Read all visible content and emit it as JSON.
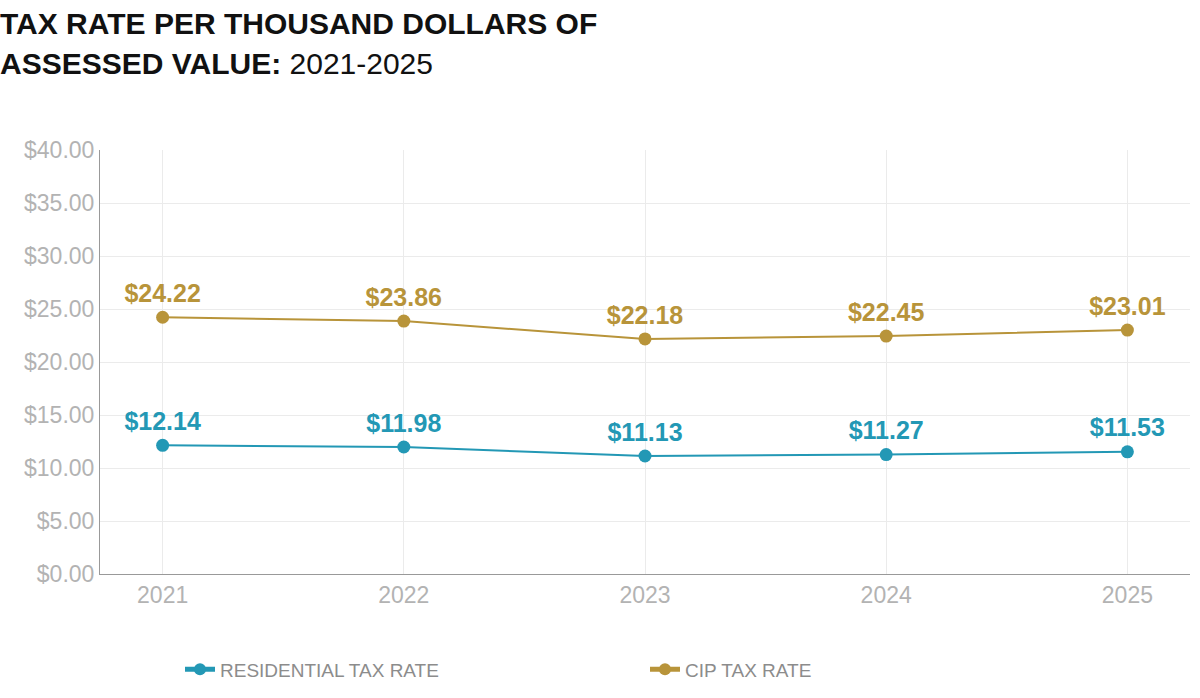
{
  "chart_data": {
    "type": "line",
    "title": "TAX RATE PER THOUSAND DOLLARS OF ASSESSED VALUE: 2021-2025",
    "categories": [
      "2021",
      "2022",
      "2023",
      "2024",
      "2025"
    ],
    "series": [
      {
        "name": "RESIDENTIAL TAX RATE",
        "color": "#2398b5",
        "values": [
          12.14,
          11.98,
          11.13,
          11.27,
          11.53
        ],
        "value_labels": [
          "$12.14",
          "$11.98",
          "$11.13",
          "$11.27",
          "$11.53"
        ]
      },
      {
        "name": "CIP TAX RATE",
        "color": "#b8943a",
        "values": [
          24.22,
          23.86,
          22.18,
          22.45,
          23.01
        ],
        "value_labels": [
          "$24.22",
          "$23.86",
          "$22.18",
          "$22.45",
          "$23.01"
        ]
      }
    ],
    "ylim": [
      0,
      40
    ],
    "yticks": [
      {
        "value": 0,
        "label": "$0.00"
      },
      {
        "value": 5,
        "label": "$5.00"
      },
      {
        "value": 10,
        "label": "$10.00"
      },
      {
        "value": 15,
        "label": "$15.00"
      },
      {
        "value": 20,
        "label": "$20.00"
      },
      {
        "value": 25,
        "label": "$25.00"
      },
      {
        "value": 30,
        "label": "$30.00"
      },
      {
        "value": 35,
        "label": "$35.00"
      },
      {
        "value": 40,
        "label": "$40.00"
      }
    ],
    "grid": true,
    "legend": "bottom",
    "data_labels": true,
    "marker": "circle",
    "line_style": "solid"
  }
}
